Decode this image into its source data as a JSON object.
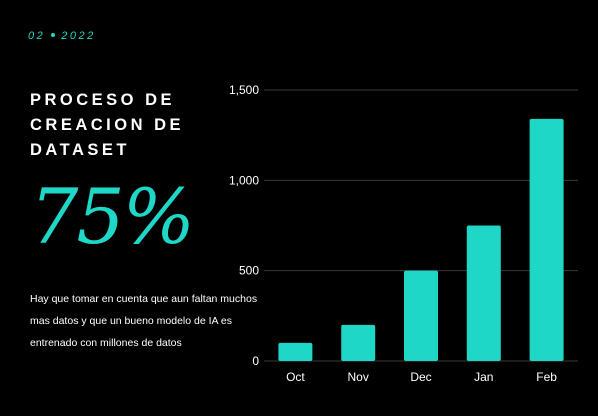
{
  "header": {
    "month": "02",
    "year": "2022"
  },
  "title": "PROCESO DE CREACION DE DATASET",
  "highlight": "75%",
  "description": "Hay que tomar en cuenta que aun faltan muchos mas datos y que un bueno modelo de IA es entrenado con millones de datos",
  "colors": {
    "background": "#000000",
    "accent": "#1ed7c7",
    "text": "#ffffff",
    "grid": "#3a3a3a"
  },
  "chart_data": {
    "type": "bar",
    "categories": [
      "Oct",
      "Nov",
      "Dec",
      "Jan",
      "Feb"
    ],
    "values": [
      100,
      200,
      500,
      750,
      1340
    ],
    "ylim": [
      0,
      1500
    ],
    "yticks": [
      0,
      500,
      1000,
      1500
    ],
    "ytick_labels": [
      "0",
      "500",
      "1,000",
      "1,500"
    ],
    "grid": true,
    "legend": "none",
    "color": "#1ed7c7"
  }
}
